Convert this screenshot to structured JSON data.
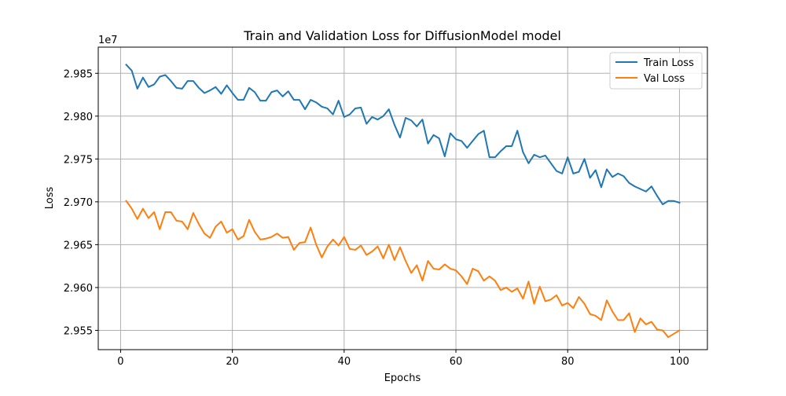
{
  "chart_data": {
    "type": "line",
    "title": "Train and Validation Loss for DiffusionModel model",
    "xlabel": "Epochs",
    "ylabel": "Loss",
    "offset_label": "1e7",
    "xlim": [
      -4,
      105
    ],
    "ylim": [
      29.5275,
      29.8805
    ],
    "xticks": [
      0,
      20,
      40,
      60,
      80,
      100
    ],
    "xtick_labels": [
      "0",
      "20",
      "40",
      "60",
      "80",
      "100"
    ],
    "yticks": [
      29.55,
      29.6,
      29.65,
      29.7,
      29.75,
      29.8,
      29.85
    ],
    "ytick_labels": [
      "2.955",
      "2.960",
      "2.965",
      "2.970",
      "2.975",
      "2.980",
      "2.985"
    ],
    "grid": true,
    "legend_position": "upper right",
    "x": [
      1,
      2,
      3,
      4,
      5,
      6,
      7,
      8,
      9,
      10,
      11,
      12,
      13,
      14,
      15,
      16,
      17,
      18,
      19,
      20,
      21,
      22,
      23,
      24,
      25,
      26,
      27,
      28,
      29,
      30,
      31,
      32,
      33,
      34,
      35,
      36,
      37,
      38,
      39,
      40,
      41,
      42,
      43,
      44,
      45,
      46,
      47,
      48,
      49,
      50,
      51,
      52,
      53,
      54,
      55,
      56,
      57,
      58,
      59,
      60,
      61,
      62,
      63,
      64,
      65,
      66,
      67,
      68,
      69,
      70,
      71,
      72,
      73,
      74,
      75,
      76,
      77,
      78,
      79,
      80,
      81,
      82,
      83,
      84,
      85,
      86,
      87,
      88,
      89,
      90,
      91,
      92,
      93,
      94,
      95,
      96,
      97,
      98,
      99,
      100
    ],
    "series": [
      {
        "name": "Train Loss",
        "color": "#1f77b4",
        "values": [
          29.86,
          29.853,
          29.832,
          29.845,
          29.834,
          29.837,
          29.846,
          29.848,
          29.841,
          29.833,
          29.832,
          29.841,
          29.841,
          29.833,
          29.827,
          29.83,
          29.834,
          29.826,
          29.836,
          29.827,
          29.819,
          29.819,
          29.833,
          29.828,
          29.818,
          29.818,
          29.828,
          29.83,
          29.823,
          29.829,
          29.819,
          29.819,
          29.808,
          29.819,
          29.816,
          29.811,
          29.809,
          29.802,
          29.818,
          29.799,
          29.802,
          29.809,
          29.81,
          29.791,
          29.799,
          29.796,
          29.8,
          29.808,
          29.79,
          29.775,
          29.798,
          29.795,
          29.788,
          29.796,
          29.768,
          29.778,
          29.774,
          29.753,
          29.78,
          29.773,
          29.771,
          29.763,
          29.771,
          29.779,
          29.783,
          29.752,
          29.752,
          29.759,
          29.765,
          29.765,
          29.783,
          29.758,
          29.745,
          29.755,
          29.752,
          29.754,
          29.745,
          29.736,
          29.733,
          29.752,
          29.733,
          29.735,
          29.75,
          29.728,
          29.737,
          29.717,
          29.738,
          29.729,
          29.733,
          29.73,
          29.722,
          29.718,
          29.715,
          29.712,
          29.718,
          29.707,
          29.697,
          29.701,
          29.701,
          29.699
        ]
      },
      {
        "name": "Val Loss",
        "color": "#ff7f0e",
        "values": [
          29.701,
          29.692,
          29.68,
          29.692,
          29.681,
          29.688,
          29.668,
          29.688,
          29.688,
          29.678,
          29.677,
          29.668,
          29.687,
          29.674,
          29.663,
          29.658,
          29.671,
          29.677,
          29.664,
          29.668,
          29.656,
          29.66,
          29.679,
          29.665,
          29.656,
          29.657,
          29.659,
          29.663,
          29.658,
          29.659,
          29.644,
          29.652,
          29.653,
          29.67,
          29.65,
          29.635,
          29.648,
          29.656,
          29.649,
          29.659,
          29.645,
          29.644,
          29.649,
          29.638,
          29.642,
          29.648,
          29.634,
          29.65,
          29.632,
          29.647,
          29.631,
          29.617,
          29.626,
          29.608,
          29.631,
          29.622,
          29.621,
          29.627,
          29.622,
          29.62,
          29.613,
          29.604,
          29.622,
          29.619,
          29.608,
          29.613,
          29.608,
          29.597,
          29.6,
          29.595,
          29.599,
          29.587,
          29.607,
          29.581,
          29.601,
          29.584,
          29.586,
          29.591,
          29.579,
          29.582,
          29.576,
          29.589,
          29.581,
          29.569,
          29.567,
          29.562,
          29.585,
          29.572,
          29.562,
          29.562,
          29.57,
          29.548,
          29.564,
          29.557,
          29.56,
          29.551,
          29.55,
          29.542,
          29.546,
          29.55
        ]
      }
    ]
  }
}
